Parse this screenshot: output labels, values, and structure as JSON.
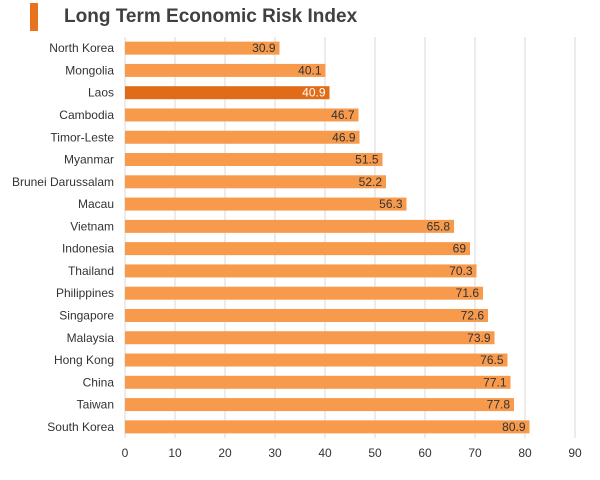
{
  "header": {
    "title": "Long Term Economic Risk Index"
  },
  "colors": {
    "accent": "#e8731f",
    "bar": "#f79a4c",
    "highlight": "#e06c18",
    "grid": "#d9d9d9"
  },
  "chart_data": {
    "type": "bar",
    "orientation": "horizontal",
    "title": "Long Term Economic Risk Index",
    "xlabel": "",
    "ylabel": "",
    "xlim": [
      0,
      90
    ],
    "ticks": [
      0,
      10,
      20,
      30,
      40,
      50,
      60,
      70,
      80,
      90
    ],
    "grid": true,
    "highlighted_category": "Laos",
    "categories": [
      "North Korea",
      "Mongolia",
      "Laos",
      "Cambodia",
      "Timor-Leste",
      "Myanmar",
      "Brunei Darussalam",
      "Macau",
      "Vietnam",
      "Indonesia",
      "Thailand",
      "Philippines",
      "Singapore",
      "Malaysia",
      "Hong Kong",
      "China",
      "Taiwan",
      "South Korea"
    ],
    "values": [
      30.9,
      40.1,
      40.9,
      46.7,
      46.9,
      51.5,
      52.2,
      56.3,
      65.8,
      69,
      70.3,
      71.6,
      72.6,
      73.9,
      76.5,
      77.1,
      77.8,
      80.9
    ]
  }
}
